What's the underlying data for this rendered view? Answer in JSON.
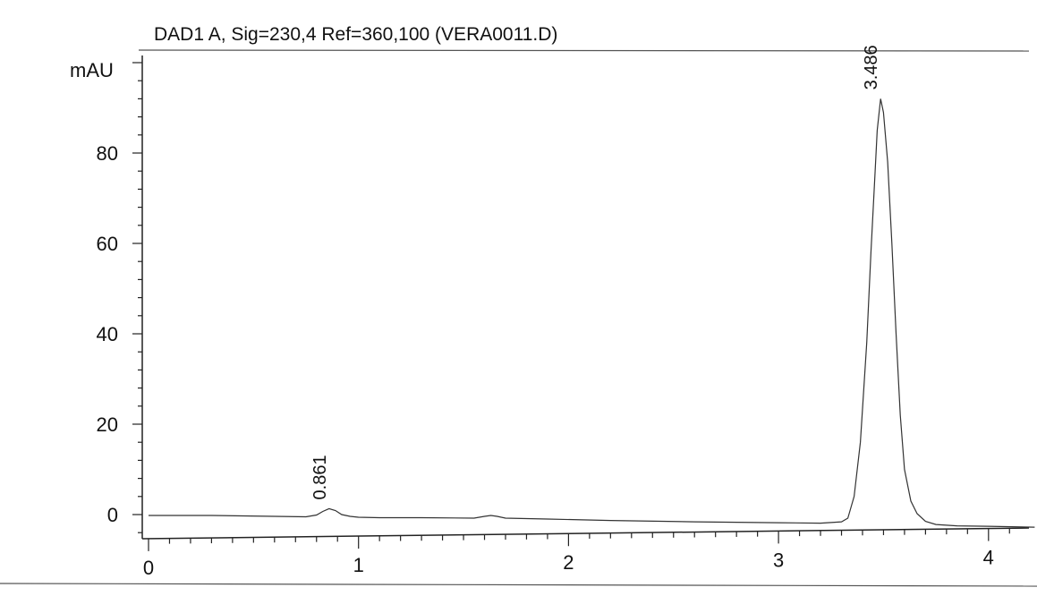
{
  "chart_data": {
    "type": "line",
    "title": "DAD1 A, Sig=230,4 Ref=360,100 (VERA0011.D)",
    "ylabel": "mAU",
    "xlabel": "",
    "xlim": [
      -0.03,
      4.22
    ],
    "ylim": [
      -5.5,
      102
    ],
    "x_ticks": [
      0,
      1,
      2,
      3,
      4
    ],
    "y_ticks": [
      0,
      20,
      40,
      60,
      80
    ],
    "grid": false,
    "series": [
      {
        "x": [
          0.0,
          0.3,
          0.6,
          0.75,
          0.8,
          0.83,
          0.86,
          0.89,
          0.92,
          0.96,
          1.0,
          1.1,
          1.3,
          1.55,
          1.6,
          1.63,
          1.66,
          1.7,
          1.9,
          2.2,
          2.6,
          3.0,
          3.2,
          3.3,
          3.33,
          3.36,
          3.39,
          3.42,
          3.44,
          3.46,
          3.47,
          3.486,
          3.5,
          3.52,
          3.54,
          3.56,
          3.58,
          3.6,
          3.63,
          3.66,
          3.7,
          3.75,
          3.85,
          4.0,
          4.22
        ],
        "y": [
          -0.2,
          -0.2,
          -0.4,
          -0.5,
          -0.1,
          0.7,
          1.3,
          0.9,
          0.0,
          -0.4,
          -0.6,
          -0.7,
          -0.7,
          -0.8,
          -0.4,
          -0.2,
          -0.4,
          -0.8,
          -1.0,
          -1.3,
          -1.6,
          -1.8,
          -1.9,
          -1.6,
          -0.8,
          4.0,
          16.0,
          38.0,
          58.0,
          76.0,
          85.0,
          92.0,
          89.0,
          78.0,
          60.0,
          40.0,
          22.0,
          10.0,
          3.0,
          0.2,
          -1.5,
          -2.2,
          -2.5,
          -2.6,
          -2.8
        ]
      }
    ],
    "peaks": [
      {
        "x": 0.861,
        "y": 1.3,
        "label": "0.861"
      },
      {
        "x": 3.486,
        "y": 92.0,
        "label": "3.486"
      }
    ]
  }
}
